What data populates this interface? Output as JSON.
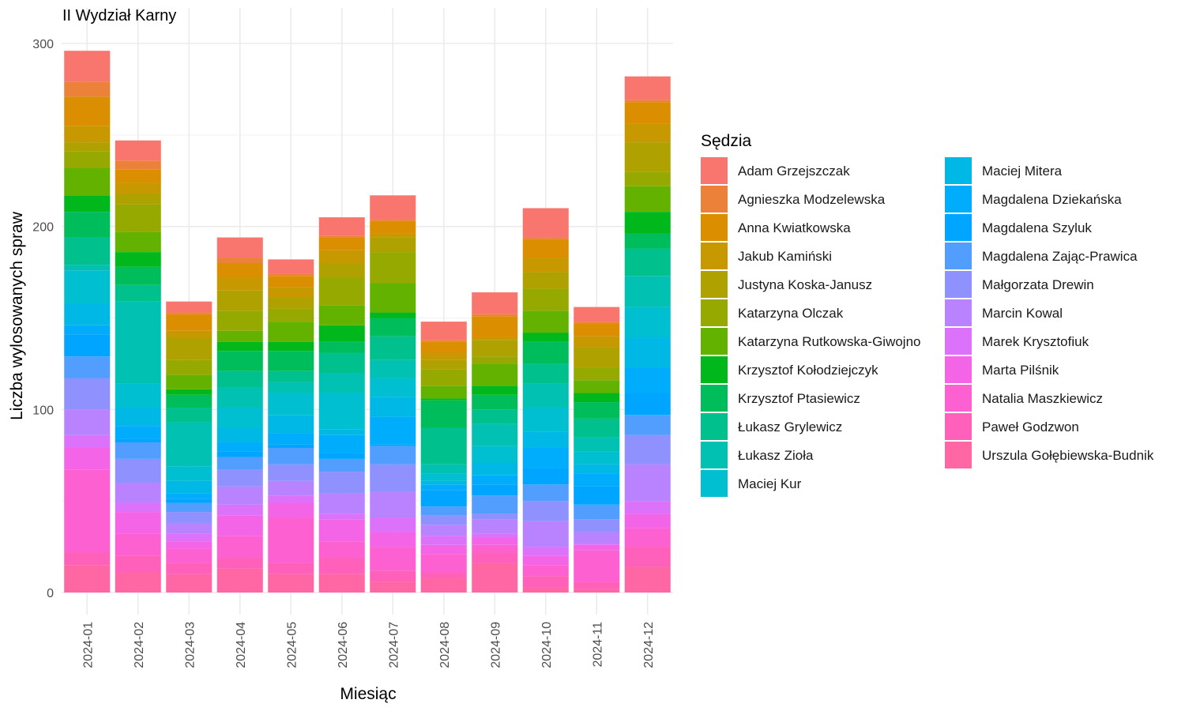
{
  "chart_data": {
    "type": "bar",
    "stacked": true,
    "title": "II Wydział Karny",
    "xlabel": "Miesiąc",
    "ylabel": "Liczba wylosowanych spraw",
    "ylim": [
      0,
      305
    ],
    "yticks": [
      0,
      100,
      200,
      300
    ],
    "grid": true,
    "legend": {
      "title": "Sędzia",
      "placement": "right",
      "columns": 2
    },
    "categories": [
      "2024-01",
      "2024-02",
      "2024-03",
      "2024-04",
      "2024-05",
      "2024-06",
      "2024-07",
      "2024-08",
      "2024-09",
      "2024-10",
      "2024-11",
      "2024-12"
    ],
    "series": [
      {
        "name": "Adam Grzejszczak",
        "color": "#F8766D",
        "values": [
          17,
          11,
          6,
          11,
          8,
          10,
          13,
          10,
          12,
          16,
          8,
          13
        ]
      },
      {
        "name": "Agnieszka Modzelewska",
        "color": "#EC8239",
        "values": [
          8,
          5,
          1,
          3,
          1,
          1,
          1,
          1,
          1,
          1,
          1,
          1
        ]
      },
      {
        "name": "Anna Kwiatkowska",
        "color": "#DB8E00",
        "values": [
          16,
          7,
          9,
          8,
          6,
          7,
          7,
          6,
          12,
          10,
          7,
          12
        ]
      },
      {
        "name": "Jakub Kamiński",
        "color": "#C79800",
        "values": [
          9,
          6,
          4,
          7,
          6,
          7,
          2,
          4,
          1,
          8,
          6,
          10
        ]
      },
      {
        "name": "Justyna Koska-Janusz",
        "color": "#AFA100",
        "values": [
          5,
          6,
          12,
          11,
          6,
          8,
          8,
          5,
          9,
          9,
          11,
          16
        ]
      },
      {
        "name": "Katarzyna Olczak",
        "color": "#96A900",
        "values": [
          9,
          15,
          8,
          11,
          7,
          15,
          17,
          9,
          4,
          12,
          7,
          8
        ]
      },
      {
        "name": "Katarzyna Rutkowska-Giwojno",
        "color": "#64B200",
        "values": [
          15,
          11,
          8,
          6,
          11,
          11,
          16,
          7,
          12,
          12,
          7,
          14
        ]
      },
      {
        "name": "Krzysztof Kołodziejczyk",
        "color": "#00B81B",
        "values": [
          9,
          8,
          3,
          5,
          5,
          9,
          3,
          1,
          5,
          5,
          5,
          12
        ]
      },
      {
        "name": "Krzysztof Ptasiewicz",
        "color": "#00BD5C",
        "values": [
          14,
          10,
          7,
          11,
          11,
          6,
          10,
          15,
          8,
          12,
          9,
          8
        ]
      },
      {
        "name": "Łukasz Grylewicz",
        "color": "#00C08E",
        "values": [
          15,
          9,
          8,
          9,
          6,
          11,
          13,
          20,
          8,
          11,
          10,
          15
        ]
      },
      {
        "name": "Łukasz Zioła",
        "color": "#00C1B2",
        "values": [
          3,
          45,
          24,
          11,
          6,
          11,
          10,
          5,
          12,
          13,
          8,
          17
        ]
      },
      {
        "name": "Maciej Kur",
        "color": "#00BFD1",
        "values": [
          18,
          13,
          8,
          11,
          12,
          20,
          10,
          4,
          9,
          13,
          7,
          17
        ]
      },
      {
        "name": "Maciej Mitera",
        "color": "#00B8E5",
        "values": [
          12,
          10,
          7,
          8,
          10,
          3,
          11,
          2,
          7,
          9,
          5,
          16
        ]
      },
      {
        "name": "Magdalena Dziekańska",
        "color": "#00ACFC",
        "values": [
          5,
          7,
          3,
          5,
          6,
          10,
          15,
          3,
          5,
          11,
          7,
          14
        ]
      },
      {
        "name": "Magdalena Szyluk",
        "color": "#00A5FF",
        "values": [
          12,
          2,
          2,
          3,
          2,
          3,
          1,
          9,
          6,
          9,
          10,
          12
        ]
      },
      {
        "name": "Magdalena Zając-Prawica",
        "color": "#529EFF",
        "values": [
          12,
          9,
          5,
          7,
          9,
          7,
          10,
          5,
          10,
          9,
          8,
          11
        ]
      },
      {
        "name": "Małgorzata Drewin",
        "color": "#8F91FF",
        "values": [
          17,
          13,
          6,
          9,
          9,
          12,
          15,
          5,
          3,
          11,
          7,
          16
        ]
      },
      {
        "name": "Marcin Kowal",
        "color": "#B983FF",
        "values": [
          14,
          11,
          6,
          10,
          8,
          11,
          14,
          6,
          8,
          14,
          6,
          20
        ]
      },
      {
        "name": "Marek Krysztofiuk",
        "color": "#DD72FA",
        "values": [
          7,
          5,
          4,
          6,
          4,
          3,
          8,
          5,
          2,
          5,
          1,
          7
        ]
      },
      {
        "name": "Marta Pilśnik",
        "color": "#F365E6",
        "values": [
          12,
          12,
          4,
          11,
          8,
          12,
          8,
          5,
          4,
          5,
          3,
          8
        ]
      },
      {
        "name": "Natalia Maszkiewicz",
        "color": "#FD61D1",
        "values": [
          45,
          12,
          8,
          12,
          25,
          9,
          13,
          10,
          4,
          6,
          17,
          10
        ]
      },
      {
        "name": "Paweł Godzwon",
        "color": "#FF61BA",
        "values": [
          7,
          9,
          6,
          6,
          6,
          9,
          6,
          3,
          6,
          6,
          4,
          11
        ]
      },
      {
        "name": "Urszula Gołębiewska-Budnik",
        "color": "#FF67A4",
        "values": [
          15,
          11,
          10,
          13,
          10,
          10,
          6,
          8,
          16,
          3,
          2,
          14
        ]
      }
    ]
  }
}
